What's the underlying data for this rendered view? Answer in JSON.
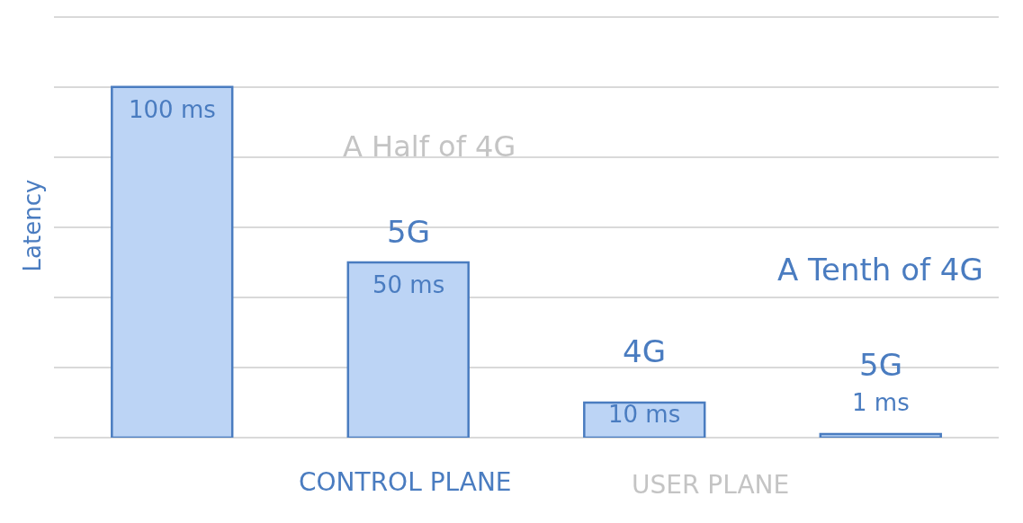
{
  "chart_data": {
    "type": "bar",
    "ylabel": "Latency",
    "categories": [
      null,
      "5G",
      "4G",
      "5G"
    ],
    "values": [
      100,
      50,
      10,
      1
    ],
    "color": "#bcd4f5",
    "value_labels": [
      "100 ms",
      "50 ms",
      "10 ms",
      "1 ms"
    ],
    "yticks": [
      {
        "value": 0,
        "label": null
      },
      {
        "value": 20,
        "label": null
      },
      {
        "value": 40,
        "label": null
      },
      {
        "value": 60,
        "label": null
      },
      {
        "value": 80,
        "label": null
      },
      {
        "value": 100,
        "label": null
      },
      {
        "value": 120,
        "label": null
      }
    ],
    "grid": "y",
    "tick_labels": "x",
    "annotations": [
      "A Half of 4G",
      "A Tenth of 4G",
      "CONTROL PLANE",
      "USER PLANE"
    ]
  }
}
